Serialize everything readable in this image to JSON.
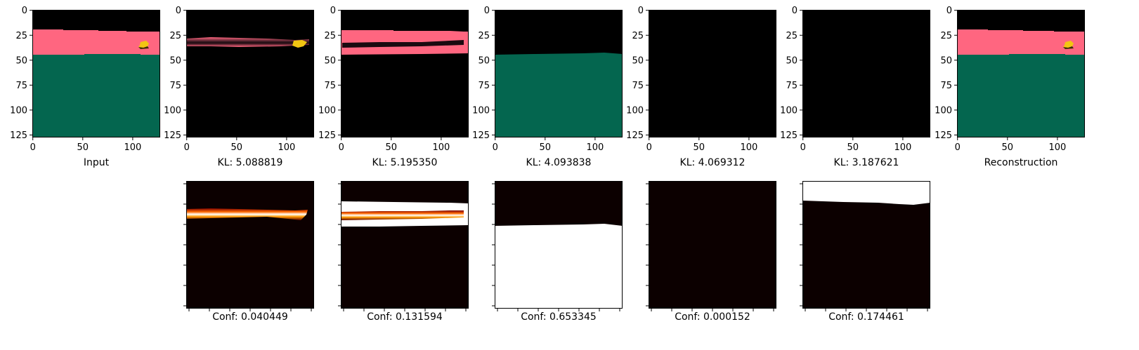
{
  "chart_data": {
    "type": "image-grid",
    "image_size": [
      128,
      128
    ],
    "x_ticks": [
      0,
      50,
      100
    ],
    "y_ticks": [
      0,
      25,
      50,
      75,
      100,
      125
    ],
    "colors": {
      "background": "#000000",
      "pink": "#ff6680",
      "green": "#04664f",
      "yellow": "#f2c512",
      "conf_low": "#0c0000",
      "conf_high": "#ffffff"
    },
    "top_row": [
      {
        "label": "Input",
        "content": "pink band rows 20-45 with small yellow object near x 110, green region rows 45-128"
      },
      {
        "label": "KL: 5.088819",
        "content": "thin pink streak rows 27-40"
      },
      {
        "label": "KL: 5.195350",
        "content": "pink band rows 21-45 with dark streak"
      },
      {
        "label": "KL: 4.093838",
        "content": "green region rows 44-128"
      },
      {
        "label": "KL: 4.069312",
        "content": "black"
      },
      {
        "label": "KL: 3.187621",
        "content": "black"
      },
      {
        "label": "Reconstruction",
        "content": "pink band rows 20-45 with small yellow object, green region rows 45-128"
      }
    ],
    "bottom_row": [
      {
        "label": "Conf: 0.040449"
      },
      {
        "label": "Conf: 0.131594"
      },
      {
        "label": "Conf: 0.653345"
      },
      {
        "label": "Conf: 0.000152"
      },
      {
        "label": "Conf: 0.174461"
      }
    ]
  }
}
